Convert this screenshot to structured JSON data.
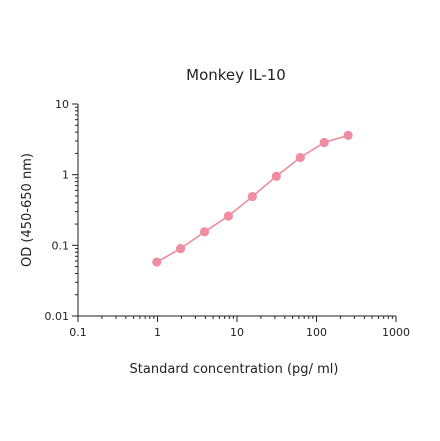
{
  "chart_data": {
    "type": "line",
    "title": "Monkey IL-10",
    "xlabel": "Standard concentration (pg/ ml)",
    "ylabel": "OD (450-650 nm)",
    "xscale": "log",
    "yscale": "log",
    "xlim": [
      0.1,
      1000
    ],
    "ylim": [
      0.01,
      10
    ],
    "xticks": [
      0.1,
      1,
      10,
      100,
      1000
    ],
    "xtick_labels": [
      "0.1",
      "1",
      "10",
      "100",
      "1000"
    ],
    "yticks": [
      0.01,
      0.1,
      1,
      10
    ],
    "ytick_labels": [
      "0.01",
      "0.1",
      "1",
      "10"
    ],
    "grid": false,
    "colors": {
      "series": "#ec8c9e",
      "marker": "#f08ca3"
    },
    "series": [
      {
        "x": [
          0.98,
          1.95,
          3.9,
          7.8,
          15.6,
          31.25,
          62.5,
          125,
          250
        ],
        "y": [
          0.058,
          0.09,
          0.155,
          0.26,
          0.49,
          0.95,
          1.75,
          2.85,
          3.6
        ]
      }
    ]
  }
}
